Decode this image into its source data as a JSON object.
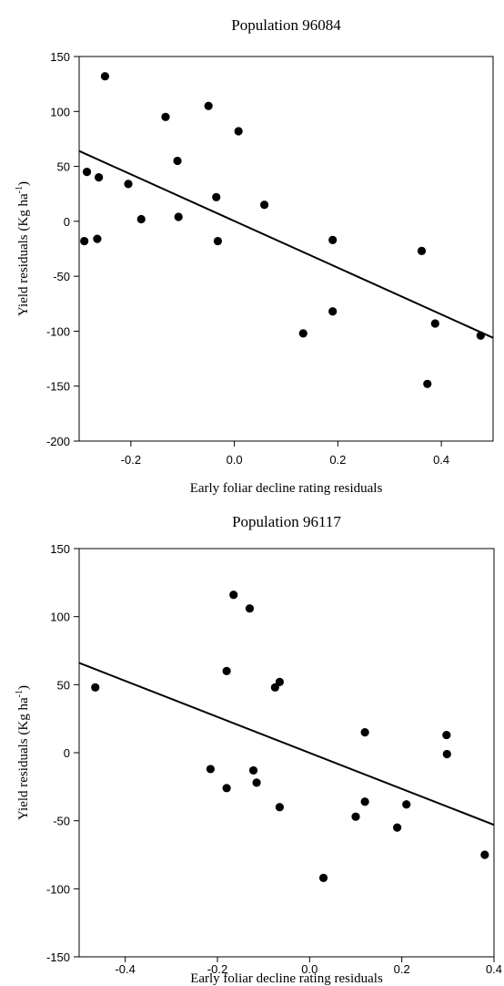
{
  "chart_data": [
    {
      "type": "scatter",
      "title": "Population 96084",
      "xlabel": "Early foliar decline rating residuals",
      "ylabel_main": "Yield residuals (Kg ha",
      "ylabel_sup": "-1",
      "ylabel_close": ")",
      "xlim": [
        -0.3,
        0.5
      ],
      "ylim": [
        -200,
        150
      ],
      "xticks": [
        -0.2,
        0.0,
        0.2,
        0.4
      ],
      "xtick_labels": [
        "-0.2",
        "0.0",
        "0.2",
        "0.4"
      ],
      "yticks": [
        -200,
        -150,
        -100,
        -50,
        0,
        50,
        100,
        150
      ],
      "ytick_labels": [
        "-200",
        "-150",
        "-100",
        "-50",
        "0",
        "50",
        "100",
        "150"
      ],
      "points": [
        {
          "x": -0.29,
          "y": -18
        },
        {
          "x": -0.285,
          "y": 45
        },
        {
          "x": -0.265,
          "y": -16
        },
        {
          "x": -0.262,
          "y": 40
        },
        {
          "x": -0.25,
          "y": 132
        },
        {
          "x": -0.205,
          "y": 34
        },
        {
          "x": -0.18,
          "y": 2
        },
        {
          "x": -0.133,
          "y": 95
        },
        {
          "x": -0.11,
          "y": 55
        },
        {
          "x": -0.108,
          "y": 4
        },
        {
          "x": -0.05,
          "y": 105
        },
        {
          "x": -0.035,
          "y": 22
        },
        {
          "x": -0.032,
          "y": -18
        },
        {
          "x": 0.008,
          "y": 82
        },
        {
          "x": 0.058,
          "y": 15
        },
        {
          "x": 0.133,
          "y": -102
        },
        {
          "x": 0.19,
          "y": -17
        },
        {
          "x": 0.19,
          "y": -82
        },
        {
          "x": 0.362,
          "y": -27
        },
        {
          "x": 0.373,
          "y": -148
        },
        {
          "x": 0.388,
          "y": -93
        },
        {
          "x": 0.476,
          "y": -104
        }
      ],
      "fit_line": [
        {
          "x": -0.3,
          "y": 64
        },
        {
          "x": 0.5,
          "y": -106
        }
      ]
    },
    {
      "type": "scatter",
      "title": "Population 96117",
      "xlabel": "Early foliar decline rating residuals",
      "ylabel_main": "Yield residuals (Kg ha",
      "ylabel_sup": "-1",
      "ylabel_close": ")",
      "xlim": [
        -0.5,
        0.4
      ],
      "ylim": [
        -150,
        150
      ],
      "xticks": [
        -0.4,
        -0.2,
        0.0,
        0.2,
        0.4
      ],
      "xtick_labels": [
        "-0.4",
        "-0.2",
        "0.0",
        "0.2",
        "0.4"
      ],
      "yticks": [
        -150,
        -100,
        -50,
        0,
        50,
        100,
        150
      ],
      "ytick_labels": [
        "-150",
        "-100",
        "-50",
        "0",
        "50",
        "100",
        "150"
      ],
      "points": [
        {
          "x": -0.465,
          "y": 48
        },
        {
          "x": -0.215,
          "y": -12
        },
        {
          "x": -0.18,
          "y": 60
        },
        {
          "x": -0.18,
          "y": -26
        },
        {
          "x": -0.165,
          "y": 116
        },
        {
          "x": -0.13,
          "y": 106
        },
        {
          "x": -0.122,
          "y": -13
        },
        {
          "x": -0.115,
          "y": -22
        },
        {
          "x": -0.075,
          "y": 48
        },
        {
          "x": -0.065,
          "y": 52
        },
        {
          "x": -0.065,
          "y": -40
        },
        {
          "x": 0.03,
          "y": -92
        },
        {
          "x": 0.1,
          "y": -47
        },
        {
          "x": 0.12,
          "y": 15
        },
        {
          "x": 0.12,
          "y": -36
        },
        {
          "x": 0.19,
          "y": -55
        },
        {
          "x": 0.21,
          "y": -38
        },
        {
          "x": 0.297,
          "y": 13
        },
        {
          "x": 0.298,
          "y": -1
        },
        {
          "x": 0.38,
          "y": -75
        }
      ],
      "fit_line": [
        {
          "x": -0.5,
          "y": 66
        },
        {
          "x": 0.4,
          "y": -53
        }
      ]
    }
  ]
}
